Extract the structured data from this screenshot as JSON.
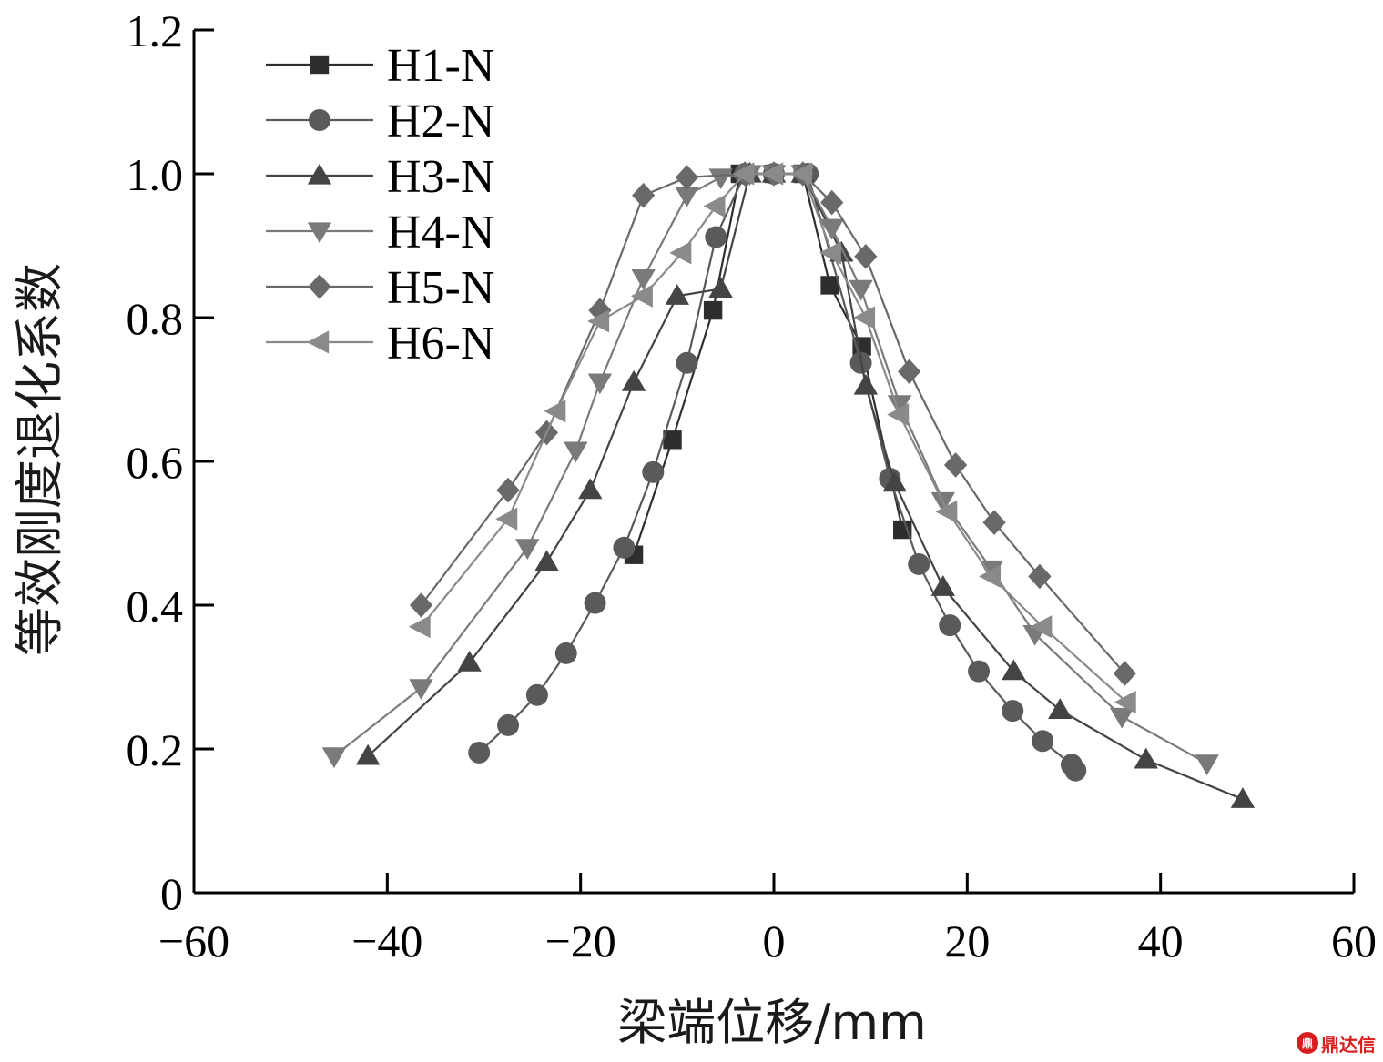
{
  "chart_data": {
    "type": "scatter",
    "xlabel": "梁端位移/mm",
    "ylabel": "等效刚度退化系数",
    "xlim": [
      -60,
      60
    ],
    "ylim": [
      0,
      1.2
    ],
    "x_ticks": [
      "−60",
      "−40",
      "−20",
      "0",
      "20",
      "40",
      "60"
    ],
    "y_ticks": [
      "0",
      "0.2",
      "0.4",
      "0.6",
      "0.8",
      "1.0",
      "1.2"
    ],
    "legend_position": "top-left",
    "grid": false,
    "series": [
      {
        "name": "H1-N",
        "marker": "square",
        "color": "#2e2e2e",
        "x": [
          -14.5,
          -10.5,
          -6.3,
          -3.5,
          0,
          3,
          5.8,
          9.1,
          13.3
        ],
        "y": [
          0.47,
          0.63,
          0.81,
          1.0,
          1.0,
          1.0,
          0.845,
          0.76,
          0.505
        ]
      },
      {
        "name": "H2-N",
        "marker": "circle",
        "color": "#5a5a5a",
        "x": [
          -30.5,
          -27.5,
          -24.5,
          -21.5,
          -18.5,
          -15.5,
          -12.5,
          -9.0,
          -6.0,
          -3.0,
          0,
          3.5,
          9.0,
          12.0,
          15.0,
          18.2,
          21.2,
          24.7,
          27.8,
          30.8,
          31.2
        ],
        "y": [
          0.195,
          0.233,
          0.275,
          0.333,
          0.403,
          0.48,
          0.585,
          0.737,
          0.912,
          1.0,
          1.0,
          1.0,
          0.737,
          0.576,
          0.457,
          0.372,
          0.308,
          0.253,
          0.211,
          0.178,
          0.17
        ]
      },
      {
        "name": "H3-N",
        "marker": "triangle-up",
        "color": "#444444",
        "x": [
          -42,
          -31.5,
          -23.5,
          -19,
          -14.5,
          -10,
          -5.5,
          -2.5,
          0,
          3,
          7,
          9.5,
          12.5,
          17.5,
          24.8,
          29.6,
          38.5,
          48.5
        ],
        "y": [
          0.19,
          0.32,
          0.46,
          0.56,
          0.71,
          0.83,
          0.84,
          1.0,
          1.0,
          1.0,
          0.89,
          0.705,
          0.57,
          0.425,
          0.308,
          0.254,
          0.185,
          0.13
        ]
      },
      {
        "name": "H4-N",
        "marker": "triangle-down",
        "color": "#7a7a7a",
        "x": [
          -45.5,
          -36.5,
          -25.5,
          -20.5,
          -18,
          -13.5,
          -9,
          -5.5,
          -2.5,
          0,
          3,
          6,
          9,
          13,
          17.5,
          22.5,
          27,
          36,
          44.8
        ],
        "y": [
          0.19,
          0.285,
          0.48,
          0.615,
          0.71,
          0.855,
          0.97,
          0.995,
          1.0,
          1.0,
          1.0,
          0.925,
          0.84,
          0.68,
          0.545,
          0.45,
          0.36,
          0.245,
          0.18
        ]
      },
      {
        "name": "H5-N",
        "marker": "diamond",
        "color": "#696969",
        "x": [
          -36.5,
          -27.5,
          -23.5,
          -18,
          -13.5,
          -9,
          -3,
          0,
          3,
          6,
          9.5,
          14,
          18.8,
          22.8,
          27.5,
          36.3
        ],
        "y": [
          0.4,
          0.56,
          0.64,
          0.81,
          0.97,
          0.995,
          1.0,
          1.0,
          1.0,
          0.96,
          0.885,
          0.725,
          0.595,
          0.515,
          0.44,
          0.305
        ]
      },
      {
        "name": "H6-N",
        "marker": "triangle-left",
        "color": "#8a8a8a",
        "x": [
          -36.5,
          -27.5,
          -22.5,
          -18,
          -13.5,
          -9.5,
          -6,
          -3,
          0,
          3,
          6,
          9.5,
          13,
          18,
          22.5,
          27.8,
          36.5
        ],
        "y": [
          0.37,
          0.52,
          0.67,
          0.795,
          0.83,
          0.89,
          0.955,
          1.0,
          1.0,
          1.0,
          0.89,
          0.8,
          0.665,
          0.53,
          0.44,
          0.37,
          0.265
        ]
      }
    ]
  },
  "watermark": {
    "seal_text": "鼎",
    "brand_text": "鼎达信"
  }
}
